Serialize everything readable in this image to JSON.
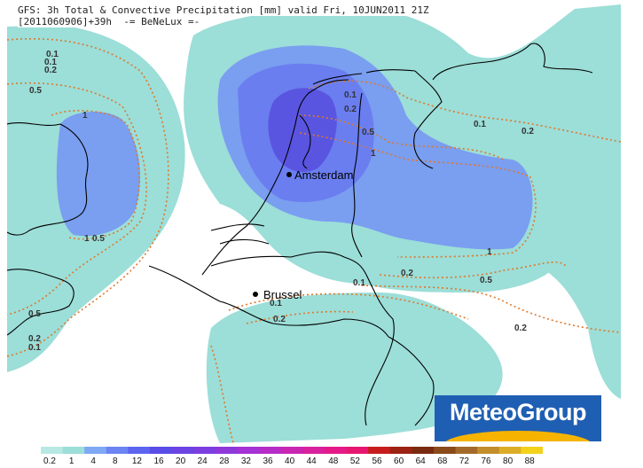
{
  "header": {
    "line1": "GFS: 3h Total & Convective Precipitation [mm] valid Fri, 10JUN2011 21Z",
    "line2": "[2011060906]+39h  -= BeNeLux =-"
  },
  "map": {
    "cities": [
      {
        "name": "Amsterdam"
      },
      {
        "name": "Brussel"
      }
    ],
    "contour_labels": [
      "0.1",
      "0.2",
      "0.5",
      "1",
      "0.1",
      "0.2",
      "0.5",
      "1",
      "0.1",
      "0.2",
      "0.1",
      "0.2",
      "0.5",
      "1",
      "0.1",
      "0.2",
      "0.5",
      "1",
      "0.1",
      "0.2",
      "0.5",
      "0.2",
      "0.1"
    ],
    "colors": {
      "water_fill": "#9cded8",
      "precip_light": "#7a9ef0",
      "precip_mid": "#6a7ef0",
      "precip_heavy": "#5a55e0",
      "contour_line": "#e0782a",
      "coastline": "#000000"
    }
  },
  "logo": {
    "text": "MeteoGroup"
  },
  "legend": {
    "ticks": [
      "0.2",
      "1",
      "4",
      "8",
      "12",
      "16",
      "20",
      "24",
      "28",
      "32",
      "36",
      "40",
      "44",
      "48",
      "52",
      "56",
      "60",
      "64",
      "68",
      "72",
      "76",
      "80",
      "88"
    ],
    "colors": [
      "#b7e8e4",
      "#9cded8",
      "#7fa8f5",
      "#6b84f2",
      "#5d64ef",
      "#5a4ce6",
      "#6b44e3",
      "#7d3ee0",
      "#8f38da",
      "#a432d4",
      "#b62cc6",
      "#c926b2",
      "#d9209e",
      "#e51a88",
      "#e71670",
      "#c81d1d",
      "#9c2214",
      "#7a2a10",
      "#8a4a1a",
      "#a26a2a",
      "#c48d2c",
      "#dcae28",
      "#f2d21a"
    ]
  }
}
